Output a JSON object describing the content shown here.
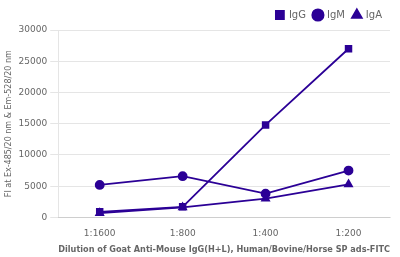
{
  "chart_data": {
    "type": "line",
    "xlabel": "Dilution of Goat Anti-Mouse IgG(H+L), Human/Bovine/Horse SP ads-FITC",
    "ylabel": "FI at Ex-485/20 nm & Em-528/20 nm",
    "categories": [
      "1:1600",
      "1:800",
      "1:400",
      "1:200"
    ],
    "series": [
      {
        "name": "IgG",
        "color": "#2b0096",
        "marker": "square",
        "values": [
          900,
          1700,
          14800,
          27000
        ]
      },
      {
        "name": "IgM",
        "color": "#2b0096",
        "marker": "circle",
        "values": [
          5200,
          6600,
          3800,
          7500
        ]
      },
      {
        "name": "IgA",
        "color": "#2b0096",
        "marker": "triangle",
        "values": [
          700,
          1600,
          3000,
          5300
        ]
      }
    ],
    "ylim": [
      0,
      30000
    ],
    "yticks": [
      0,
      5000,
      10000,
      15000,
      20000,
      25000,
      30000
    ],
    "grid": "y",
    "legend": "upper right"
  }
}
